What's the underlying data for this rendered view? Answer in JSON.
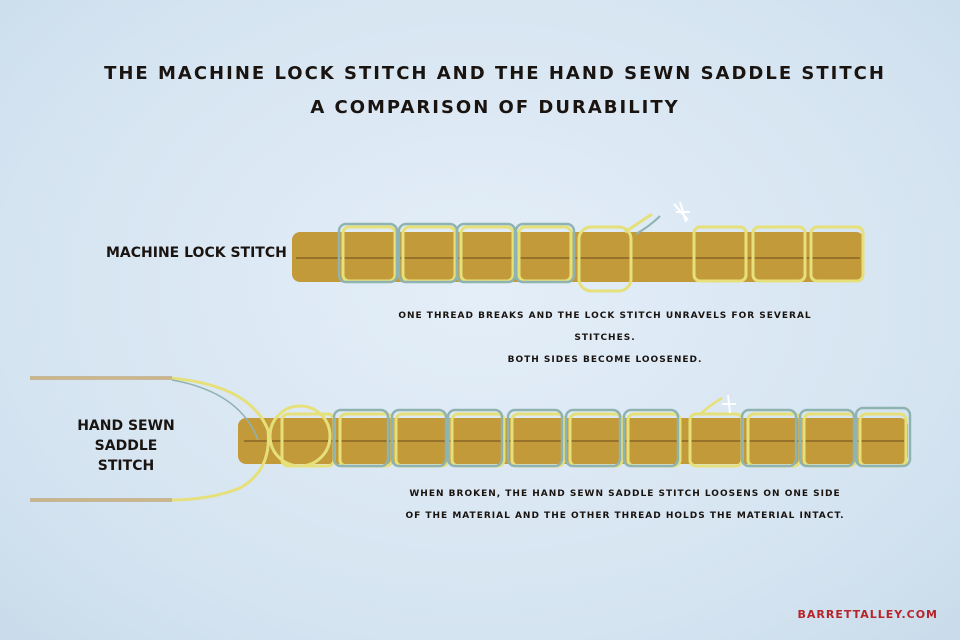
{
  "title": {
    "line1": "The Machine Lock Stitch and the Hand Sewn Saddle Stitch",
    "line2": "A Comparison of Durability"
  },
  "lock_stitch": {
    "label": "Machine Lock Stitch",
    "caption_line1": "One thread breaks and the lock stitch unravels for several stitches.",
    "caption_line2": "Both sides become loosened."
  },
  "saddle_stitch": {
    "label_line1": "Hand Sewn",
    "label_line2": "Saddle Stitch",
    "caption_line1": "When broken, the hand sewn saddle stitch loosens on one side",
    "caption_line2": "of the material and the other thread holds the material intact."
  },
  "credit": "barrettalley.com",
  "colors": {
    "background": "#d9e7f3",
    "leather": "#c39a3a",
    "thread_yellow": "#e6e07a",
    "thread_blue": "#8fb3b0",
    "text": "#1a1410",
    "credit": "#b8232a"
  }
}
